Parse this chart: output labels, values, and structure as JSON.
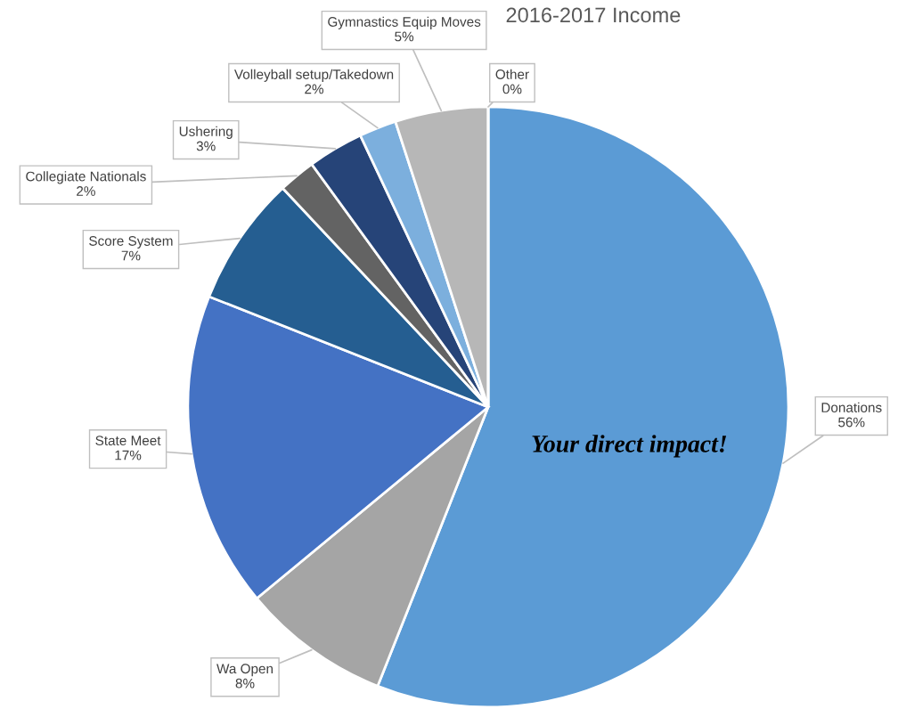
{
  "chart_data": {
    "type": "pie",
    "title": "2016-2017 Income",
    "categories": [
      "Donations",
      "Wa Open",
      "State Meet",
      "Score System",
      "Collegiate Nationals",
      "Ushering",
      "Volleyball setup/Takedown",
      "Gymnastics Equip Moves",
      "Other"
    ],
    "values": [
      56,
      8,
      17,
      7,
      2,
      3,
      2,
      5,
      0
    ],
    "value_labels": [
      "56%",
      "8%",
      "17%",
      "7%",
      "2%",
      "3%",
      "2%",
      "5%",
      "0%"
    ],
    "colors": [
      "#5b9bd5",
      "#a5a5a5",
      "#4472c4",
      "#255e91",
      "#636363",
      "#264478",
      "#7cafdd",
      "#b7b7b7",
      "#698ed0"
    ],
    "annotations": [
      "Your direct impact!"
    ]
  }
}
